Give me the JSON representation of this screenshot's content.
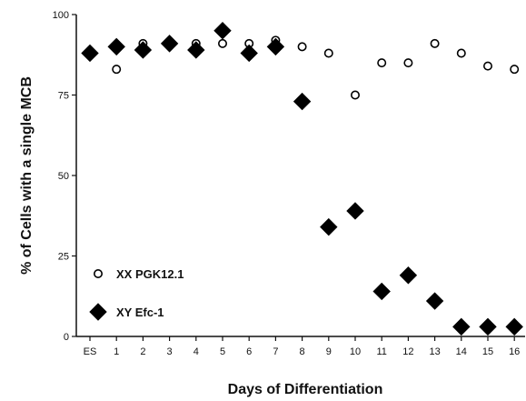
{
  "chart_data": {
    "type": "scatter",
    "xlabel": "Days of Differentiation",
    "ylabel": "% of Cells with a single MCB",
    "categories": [
      "ES",
      "1",
      "2",
      "3",
      "4",
      "5",
      "6",
      "7",
      "8",
      "9",
      "10",
      "11",
      "12",
      "13",
      "14",
      "15",
      "16"
    ],
    "ylim": [
      0,
      100
    ],
    "yticks": [
      "0",
      "25",
      "50",
      "75",
      "100"
    ],
    "grid": false,
    "legend": {
      "placement": "bottom-left"
    },
    "series": [
      {
        "name": "XX PGK12.1",
        "marker": "open-circle",
        "color": "#000000",
        "values": [
          88,
          83,
          91,
          91,
          91,
          91,
          91,
          92,
          90,
          88,
          75,
          85,
          85,
          91,
          88,
          84,
          83
        ]
      },
      {
        "name": "XY Efc-1",
        "marker": "filled-diamond",
        "color": "#000000",
        "values": [
          88,
          90,
          89,
          91,
          89,
          95,
          88,
          90,
          73,
          34,
          39,
          14,
          19,
          11,
          3,
          3,
          3
        ]
      }
    ]
  }
}
